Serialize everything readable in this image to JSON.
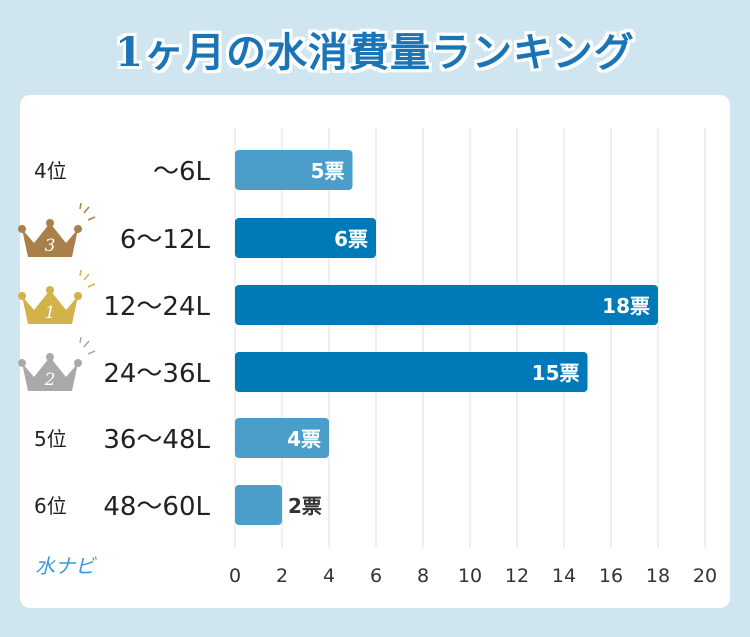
{
  "title": "1ヶ月の水消費量ランキング",
  "logo_text": "水ナビ",
  "colors": {
    "dark_bar": "#0079b8",
    "light_bar": "#4a9ec9",
    "grid": "#e0e0e0",
    "gold": "#d4b24a",
    "silver": "#a9a9a9",
    "bronze": "#a9804a"
  },
  "chart_data": {
    "type": "bar",
    "orientation": "horizontal",
    "categories": [
      "~6L",
      "6~12L",
      "12~24L",
      "24~36L",
      "36~48L",
      "48~60L"
    ],
    "category_display": [
      "～6L",
      "6～12L",
      "12～24L",
      "24～36L",
      "36～48L",
      "48～60L"
    ],
    "ranks": [
      "4位",
      "3",
      "1",
      "2",
      "5位",
      "6位"
    ],
    "rank_icon": [
      "none",
      "bronze-crown",
      "gold-crown",
      "silver-crown",
      "none",
      "none"
    ],
    "values": [
      5,
      6,
      18,
      15,
      4,
      2
    ],
    "value_labels": [
      "5票",
      "6票",
      "18票",
      "15票",
      "4票",
      "2票"
    ],
    "highlight": [
      false,
      true,
      true,
      true,
      false,
      false
    ],
    "xlim": [
      0,
      20
    ],
    "xticks": [
      0,
      2,
      4,
      6,
      8,
      10,
      12,
      14,
      16,
      18,
      20
    ],
    "grid": true
  }
}
